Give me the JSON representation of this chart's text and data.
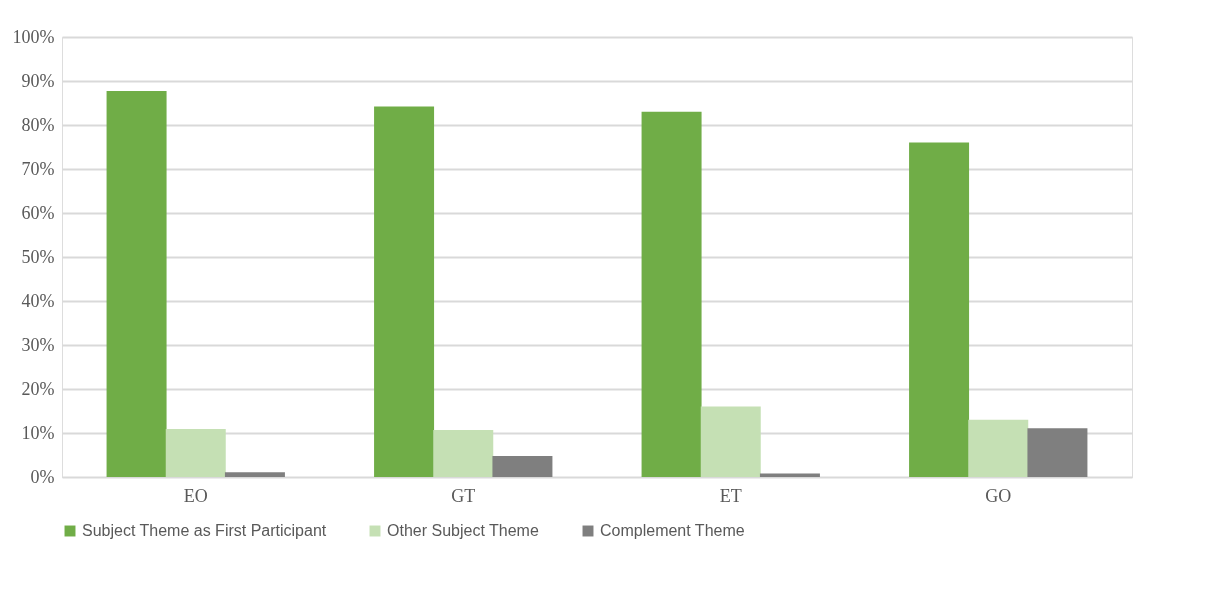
{
  "chart_data": {
    "type": "bar",
    "categories": [
      "EO",
      "GT",
      "ET",
      "GO"
    ],
    "series": [
      {
        "name": "Subject Theme as First Participant",
        "color": "#70ad47",
        "values": [
          87.7,
          84.2,
          83.0,
          76.0
        ]
      },
      {
        "name": "Other Subject Theme",
        "color": "#c5e0b4",
        "values": [
          10.9,
          10.7,
          16.0,
          13.0
        ]
      },
      {
        "name": "Complement Theme",
        "color": "#7f7f7f",
        "values": [
          1.1,
          4.8,
          0.8,
          11.1
        ]
      }
    ],
    "ylim": [
      0,
      100
    ],
    "yticks": [
      {
        "value": 0,
        "label": "0%"
      },
      {
        "value": 10,
        "label": "10%"
      },
      {
        "value": 20,
        "label": "20%"
      },
      {
        "value": 30,
        "label": "30%"
      },
      {
        "value": 40,
        "label": "40%"
      },
      {
        "value": 50,
        "label": "50%"
      },
      {
        "value": 60,
        "label": "60%"
      },
      {
        "value": 70,
        "label": "70%"
      },
      {
        "value": 80,
        "label": "80%"
      },
      {
        "value": 90,
        "label": "90%"
      },
      {
        "value": 100,
        "label": "100%"
      }
    ],
    "grid": "y",
    "legend": "bottom"
  }
}
